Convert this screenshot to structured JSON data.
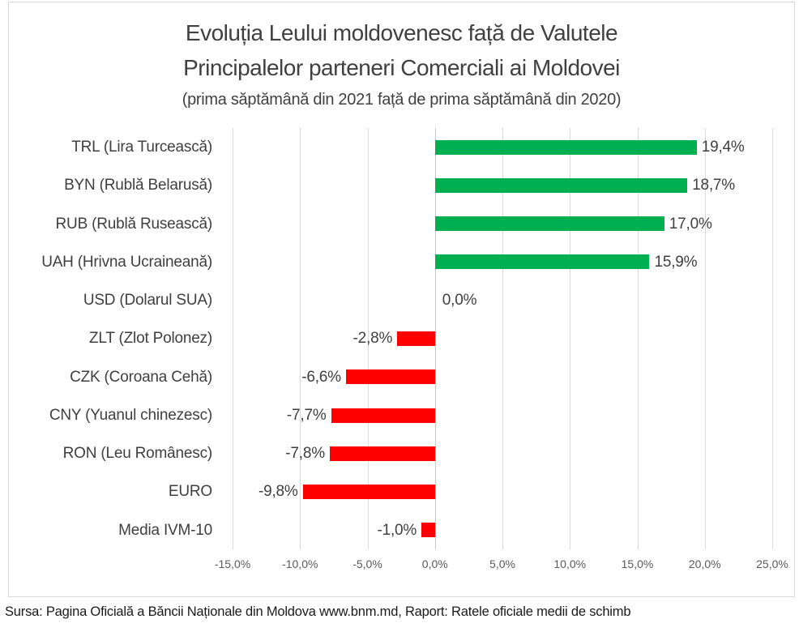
{
  "chart_data": {
    "type": "bar",
    "orientation": "horizontal",
    "title": [
      "Evoluția Leului moldovenesc față de Valutele",
      "Principalelor parteneri Comerciali ai Moldovei"
    ],
    "subtitle": "(prima săptămână din 2021 față de prima săptămână din 2020)",
    "categories": [
      "TRL (Lira Turcească)",
      "BYN (Rublă Belarusă)",
      "RUB (Rublă Rusească)",
      "UAH (Hrivna Ucraineană)",
      "USD (Dolarul SUA)",
      "ZLT (Zlot Polonez)",
      "CZK (Coroana Cehă)",
      "CNY (Yuanul chinezesc)",
      "RON (Leu Românesc)",
      "EURO",
      "Media IVM-10"
    ],
    "codes": [
      "TRL",
      "BYN",
      "RUB",
      "UAH",
      "USD",
      "ZLT",
      "CZK",
      "CNY",
      "RON",
      "EURO",
      "MEDIA-IVM-10"
    ],
    "values": [
      19.4,
      18.7,
      17.0,
      15.9,
      0.0,
      -2.8,
      -6.6,
      -7.7,
      -7.8,
      -9.8,
      -1.0
    ],
    "value_labels": [
      "19,4%",
      "18,7%",
      "17,0%",
      "15,9%",
      "0,0%",
      "-2,8%",
      "-6,6%",
      "-7,7%",
      "-7,8%",
      "-9,8%",
      "-1,0%"
    ],
    "xlim": [
      -15,
      25
    ],
    "x_ticks": [
      -15,
      -10,
      -5,
      0,
      5,
      10,
      15,
      20,
      25
    ],
    "x_tick_labels": [
      "-15,0%",
      "-10,0%",
      "-5,0%",
      "0,0%",
      "5,0%",
      "10,0%",
      "15,0%",
      "20,0%",
      "25,0%"
    ],
    "grid": true,
    "legend": "none",
    "colors": {
      "positive_bar": "#00B050",
      "negative_bar": "#FF0000",
      "gridline": "#D9D9D9",
      "frame_border": "#D9D9D9",
      "title_text": "#404040",
      "label_text": "#3F3F3F",
      "tick_text": "#595959"
    }
  },
  "footer": {
    "source_text": "Sursa: Pagina Oficială a Băncii Naționale din Moldova www.bnm.md, Raport: Ratele oficiale medii de schimb"
  }
}
